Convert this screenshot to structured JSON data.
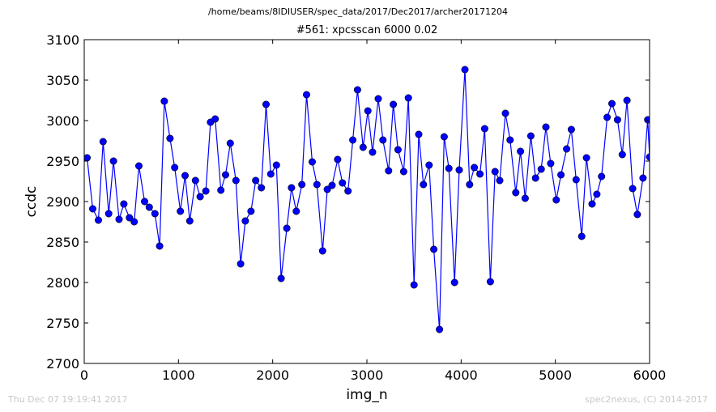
{
  "header": {
    "suptitle": "/home/beams/8IDIUSER/spec_data/2017/Dec2017/archer20171204"
  },
  "footer": {
    "left": "Thu Dec 07 19:19:41 2017",
    "right": "spec2nexus, (C) 2014-2017"
  },
  "chart_data": {
    "type": "line",
    "title": "#561: xpcsscan 6000 0.02",
    "xlabel": "img_n",
    "ylabel": "ccdc",
    "xlim": [
      0,
      6000
    ],
    "ylim": [
      2700,
      3100
    ],
    "xticks": [
      "0",
      "1000",
      "2000",
      "3000",
      "4000",
      "5000",
      "6000"
    ],
    "yticks": [
      "2700",
      "2750",
      "2800",
      "2850",
      "2900",
      "2950",
      "3000",
      "3050",
      "3100"
    ],
    "grid": false,
    "marker": "circle",
    "color": "#0000ff",
    "series": [
      {
        "x": [
          30,
          90,
          150,
          200,
          260,
          310,
          370,
          420,
          480,
          530,
          580,
          640,
          690,
          750,
          800,
          850,
          910,
          960,
          1020,
          1070,
          1120,
          1180,
          1230,
          1290,
          1340,
          1390,
          1450,
          1500,
          1550,
          1610,
          1660,
          1710,
          1770,
          1820,
          1880,
          1930,
          1980,
          2040,
          2090,
          2150,
          2200,
          2250,
          2310,
          2360,
          2420,
          2470,
          2530,
          2580,
          2630,
          2690,
          2740,
          2800,
          2850,
          2900,
          2960,
          3010,
          3060,
          3120,
          3170,
          3230,
          3280,
          3330,
          3390,
          3440,
          3500,
          3550,
          3600,
          3660,
          3710,
          3770,
          3820,
          3870,
          3930,
          3980,
          4040,
          4090,
          4140,
          4200,
          4250,
          4310,
          4360,
          4410,
          4470,
          4520,
          4580,
          4630,
          4680,
          4740,
          4790,
          4850,
          4900,
          4950,
          5010,
          5060,
          5120,
          5170,
          5220,
          5280,
          5330,
          5390,
          5440,
          5490,
          5550,
          5600,
          5660,
          5710,
          5760,
          5820,
          5870,
          5930,
          5980,
          6000
        ],
        "y": [
          2954,
          2891,
          2877,
          2974,
          2885,
          2950,
          2878,
          2897,
          2880,
          2875,
          2944,
          2900,
          2893,
          2885,
          2845,
          3024,
          2978,
          2942,
          2888,
          2932,
          2876,
          2926,
          2906,
          2913,
          2998,
          3002,
          2914,
          2933,
          2972,
          2926,
          2823,
          2876,
          2888,
          2926,
          2917,
          3020,
          2934,
          2945,
          2805,
          2867,
          2917,
          2888,
          2921,
          3032,
          2949,
          2921,
          2839,
          2915,
          2920,
          2952,
          2923,
          2913,
          2976,
          3038,
          2967,
          3012,
          2961,
          3027,
          2976,
          2938,
          3020,
          2964,
          2937,
          3028,
          2797,
          2983,
          2921,
          2945,
          2841,
          2742,
          2980,
          2941,
          2800,
          2939,
          3063,
          2921,
          2942,
          2934,
          2990,
          2801,
          2937,
          2926,
          3009,
          2976,
          2911,
          2962,
          2904,
          2981,
          2929,
          2940,
          2992,
          2947,
          2902,
          2933,
          2965,
          2989,
          2927,
          2857,
          2954,
          2897,
          2909,
          2931,
          3004,
          3021,
          3001,
          2958,
          3025,
          2916,
          2884,
          2929,
          3001,
          2955
        ]
      }
    ]
  }
}
